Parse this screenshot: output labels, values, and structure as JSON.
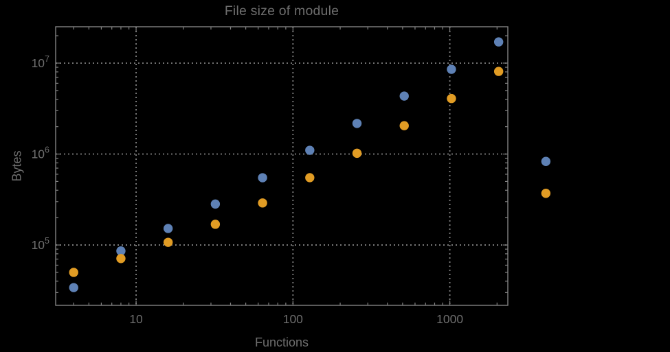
{
  "chart_data": {
    "type": "scatter",
    "title": "File size of module",
    "xlabel": "Functions",
    "ylabel": "Bytes",
    "xscale": "log",
    "yscale": "log",
    "xlim": [
      3.07,
      2343
    ],
    "ylim": [
      21700,
      25100000
    ],
    "grid": "dotted gridlines at powers of 10, both axes",
    "legend": "none",
    "x": [
      4,
      8,
      16,
      32,
      64,
      128,
      256,
      512,
      1024,
      2048,
      4096
    ],
    "series": [
      {
        "name": "series-1-blue",
        "color": "#5E81B5",
        "values": [
          34000,
          86000,
          152000,
          282000,
          549000,
          1100000,
          2170000,
          4340000,
          8550000,
          17100000,
          830000
        ]
      },
      {
        "name": "series-2-orange",
        "color": "#E19C24",
        "values": [
          50000,
          71000,
          107000,
          169000,
          290000,
          550000,
          1020000,
          2050000,
          4080000,
          8100000,
          370000
        ]
      }
    ],
    "x_tick_labels": [
      "10",
      "100",
      "1000"
    ],
    "y_tick_labels": [
      "10^5",
      "10^6",
      "10^7"
    ]
  },
  "style": {
    "background": "#000000",
    "frame_color": "#828282",
    "grid_color": "#828282",
    "text_color": "#6e6e6e",
    "point_radius": 6.7
  }
}
